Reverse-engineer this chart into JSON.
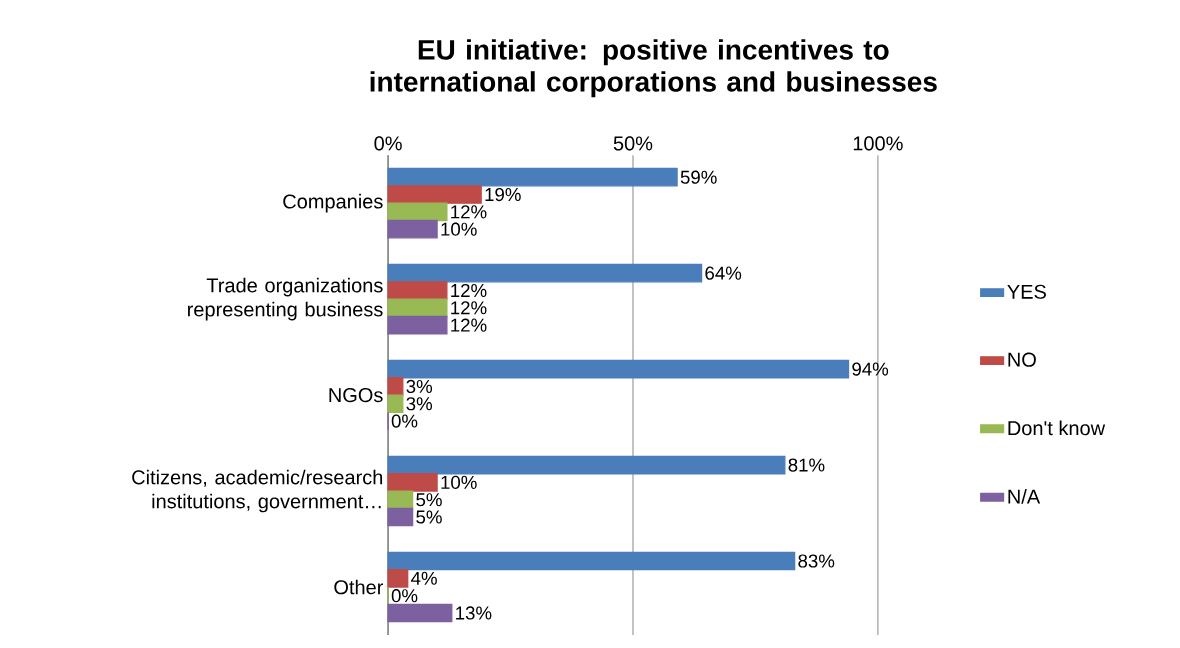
{
  "chart_data": {
    "type": "bar",
    "orientation": "horizontal",
    "title": "EU initiative: positive incentives to international corporations and businesses",
    "categories": [
      "Companies",
      "Trade organizations representing business",
      "NGOs",
      "Citizens, academic/research institutions, government…",
      "Other"
    ],
    "series": [
      {
        "name": "YES",
        "color": "#4a7ebb",
        "values": [
          59,
          64,
          94,
          81,
          83
        ],
        "value_labels": [
          "59%",
          "64%",
          "94%",
          "81%",
          "83%"
        ]
      },
      {
        "name": "NO",
        "color": "#be4b48",
        "values": [
          19,
          12,
          3,
          10,
          4
        ],
        "value_labels": [
          "19%",
          "12%",
          "3%",
          "10%",
          "4%"
        ]
      },
      {
        "name": "Don't know",
        "color": "#98b954",
        "values": [
          12,
          12,
          3,
          5,
          0
        ],
        "value_labels": [
          "12%",
          "12%",
          "3%",
          "5%",
          "0%"
        ]
      },
      {
        "name": "N/A",
        "color": "#7d60a0",
        "values": [
          10,
          12,
          0,
          5,
          13
        ],
        "value_labels": [
          "10%",
          "12%",
          "0%",
          "5%",
          "13%"
        ]
      }
    ],
    "xlim": [
      0,
      100
    ],
    "xticks": [
      {
        "value": 0,
        "label": "0%"
      },
      {
        "value": 50,
        "label": "50%"
      },
      {
        "value": 100,
        "label": "100%"
      }
    ],
    "grid": "x",
    "legend": "right"
  }
}
